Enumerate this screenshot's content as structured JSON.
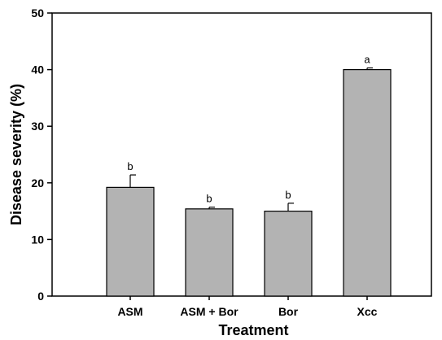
{
  "chart_data": {
    "type": "bar",
    "categories": [
      "ASM",
      "ASM + Bor",
      "Bor",
      "Xcc"
    ],
    "values": [
      19.2,
      15.4,
      15.0,
      40.0
    ],
    "errors": [
      2.2,
      0.3,
      1.4,
      0.3
    ],
    "significance": [
      "b",
      "b",
      "b",
      "a"
    ],
    "xlabel": "Treatment",
    "ylabel": "Disease severity (%)",
    "ylim": [
      0,
      50
    ],
    "yticks": [
      0,
      10,
      20,
      30,
      40,
      50
    ],
    "grid": false,
    "bar_color": "#b3b3b3",
    "edge_color": "#000000"
  }
}
